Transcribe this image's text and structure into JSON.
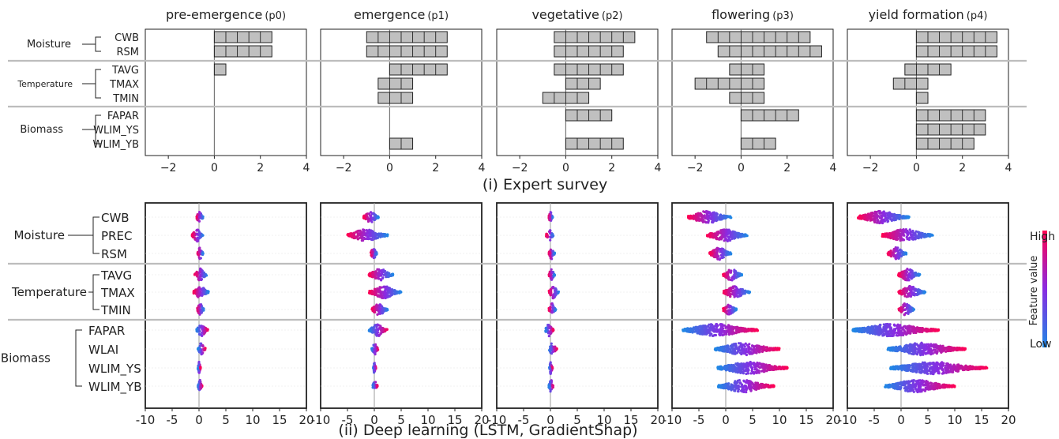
{
  "phases": [
    {
      "label": "pre-emergence",
      "code": "(p0)"
    },
    {
      "label": "emergence",
      "code": "(p1)"
    },
    {
      "label": "vegetative",
      "code": "(p2)"
    },
    {
      "label": "flowering",
      "code": "(p3)"
    },
    {
      "label": "yield formation",
      "code": "(p4)"
    }
  ],
  "colors": {
    "bar_fill": "#c0c0c0",
    "bar_edge": "#222222",
    "high": "#ff0052",
    "low": "#1e88e5",
    "separator": "#bdbdbd"
  },
  "survey": {
    "caption": "(i)  Expert survey",
    "groups": [
      {
        "name": "Moisture",
        "features": [
          "CWB",
          "RSM"
        ]
      },
      {
        "name": "Temperature",
        "features": [
          "TAVG",
          "TMAX",
          "TMIN"
        ]
      },
      {
        "name": "Biomass",
        "features": [
          "FAPAR",
          "WLIM_YS",
          "WLIM_YB"
        ]
      }
    ],
    "features": [
      "CWB",
      "RSM",
      "TAVG",
      "TMAX",
      "TMIN",
      "FAPAR",
      "WLIM_YS",
      "WLIM_YB"
    ],
    "xlim": [
      -3,
      4
    ],
    "xticks": [
      -2,
      0,
      2,
      4
    ],
    "chart_data": [
      {
        "type": "bar",
        "phase": "p0",
        "ranges": [
          [
            0,
            2.5
          ],
          [
            0,
            2.5
          ],
          [
            0,
            0.5
          ],
          null,
          null,
          null,
          null,
          null
        ]
      },
      {
        "type": "bar",
        "phase": "p1",
        "ranges": [
          [
            -1,
            2.5
          ],
          [
            -1,
            2.5
          ],
          [
            0,
            2.5
          ],
          [
            -0.5,
            1
          ],
          [
            -0.5,
            1
          ],
          null,
          null,
          [
            0,
            1
          ]
        ]
      },
      {
        "type": "bar",
        "phase": "p2",
        "ranges": [
          [
            -0.5,
            3
          ],
          [
            -0.5,
            2.5
          ],
          [
            -0.5,
            2.5
          ],
          [
            0,
            1.5
          ],
          [
            -1,
            1
          ],
          [
            0,
            2
          ],
          null,
          [
            0,
            2.5
          ]
        ]
      },
      {
        "type": "bar",
        "phase": "p3",
        "ranges": [
          [
            -1.5,
            3
          ],
          [
            -1,
            3.5
          ],
          [
            -0.5,
            1
          ],
          [
            -2,
            1
          ],
          [
            -0.5,
            1
          ],
          [
            0,
            2.5
          ],
          null,
          [
            0,
            1.5
          ]
        ]
      },
      {
        "type": "bar",
        "phase": "p4",
        "ranges": [
          [
            0,
            3.5
          ],
          [
            0,
            3.5
          ],
          [
            -0.5,
            1.5
          ],
          [
            -1,
            0.5
          ],
          [
            0,
            0.5
          ],
          [
            0,
            3
          ],
          [
            0,
            3
          ],
          [
            0,
            2.5
          ]
        ]
      }
    ]
  },
  "dl": {
    "caption": "(ii) Deep learning (LSTM,  GradientShap)",
    "groups": [
      {
        "name": "Moisture",
        "features": [
          "CWB",
          "PREC",
          "RSM"
        ]
      },
      {
        "name": "Temperature",
        "features": [
          "TAVG",
          "TMAX",
          "TMIN"
        ]
      },
      {
        "name": "Biomass",
        "features": [
          "FAPAR",
          "WLAI",
          "WLIM_YS",
          "WLIM_YB"
        ]
      }
    ],
    "features": [
      "CWB",
      "PREC",
      "RSM",
      "TAVG",
      "TMAX",
      "TMIN",
      "FAPAR",
      "WLAI",
      "WLIM_YS",
      "WLIM_YB"
    ],
    "xlim": [
      -10,
      20
    ],
    "xticks": [
      -10,
      -5,
      0,
      5,
      10,
      15,
      20
    ],
    "legend": {
      "high": "High",
      "low": "Low",
      "title": "Feature value"
    },
    "chart_data": [
      {
        "type": "scatter",
        "phase": "p0",
        "spread": [
          [
            -0.5,
            0.8
          ],
          [
            -1.3,
            0.8
          ],
          [
            -0.3,
            0.8
          ],
          [
            -0.8,
            1.5
          ],
          [
            -1,
            1.8
          ],
          [
            -0.4,
            0.9
          ],
          [
            -0.5,
            1.7
          ],
          [
            -0.2,
            1.2
          ],
          [
            -0.2,
            0.3
          ],
          [
            -0.2,
            0.6
          ]
        ]
      },
      {
        "type": "scatter",
        "phase": "p1",
        "spread": [
          [
            -2,
            0.8
          ],
          [
            -5,
            2.5
          ],
          [
            -0.7,
            0.5
          ],
          [
            -1,
            3.5
          ],
          [
            -1,
            5
          ],
          [
            -0.5,
            2.5
          ],
          [
            -1,
            2.5
          ],
          [
            -0.5,
            0.7
          ],
          [
            -0.2,
            0.3
          ],
          [
            -0.3,
            0.6
          ]
        ]
      },
      {
        "type": "scatter",
        "phase": "p2",
        "spread": [
          [
            -0.3,
            0.4
          ],
          [
            -0.8,
            0.6
          ],
          [
            -0.3,
            0.8
          ],
          [
            -0.3,
            0.8
          ],
          [
            -0.3,
            1.6
          ],
          [
            -0.3,
            1
          ],
          [
            -1,
            0.6
          ],
          [
            -0.3,
            1.2
          ],
          [
            -0.2,
            0.4
          ],
          [
            -0.3,
            0.6
          ]
        ]
      },
      {
        "type": "scatter",
        "phase": "p3",
        "spread": [
          [
            -7,
            1
          ],
          [
            -3.5,
            4
          ],
          [
            -3,
            1
          ],
          [
            -0.5,
            3
          ],
          [
            -0.5,
            4.5
          ],
          [
            -0.5,
            2
          ],
          [
            -8,
            6
          ],
          [
            -2,
            10
          ],
          [
            -1.5,
            11.5
          ],
          [
            -1.5,
            9
          ]
        ]
      },
      {
        "type": "scatter",
        "phase": "p4",
        "spread": [
          [
            -8,
            1.5
          ],
          [
            -3.5,
            6
          ],
          [
            -2.5,
            1
          ],
          [
            -0.5,
            3.5
          ],
          [
            -0.5,
            4.5
          ],
          [
            -0.5,
            2.5
          ],
          [
            -9,
            7
          ],
          [
            -2.5,
            12
          ],
          [
            -2,
            16
          ],
          [
            -3,
            10
          ]
        ]
      }
    ]
  }
}
